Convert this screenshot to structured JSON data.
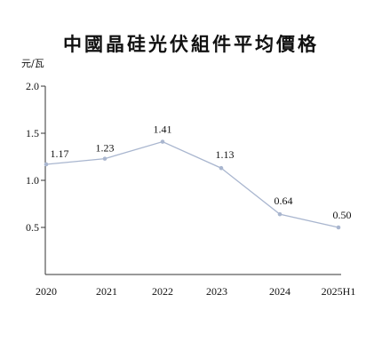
{
  "chart_data": {
    "type": "line",
    "title": "中國晶硅光伏組件平均價格",
    "ylabel": "元/瓦",
    "xlabel": "",
    "categories": [
      "2020",
      "2021",
      "2022",
      "2023",
      "2024",
      "2025H1"
    ],
    "series": [
      {
        "values": [
          1.17,
          1.23,
          1.41,
          1.13,
          0.64,
          0.5
        ]
      }
    ],
    "data_labels": [
      "1.17",
      "1.23",
      "1.41",
      "1.13",
      "0.64",
      "0.50"
    ],
    "yticks": [
      "2.0",
      "1.5",
      "1.0",
      "0.5"
    ],
    "ytick_values": [
      2.0,
      1.5,
      1.0,
      0.5
    ],
    "ylim": [
      0,
      2.0
    ],
    "grid": false,
    "colors": {
      "line": "#a9b6cf",
      "marker": "#a9b6cf",
      "axis": "#333333"
    }
  }
}
